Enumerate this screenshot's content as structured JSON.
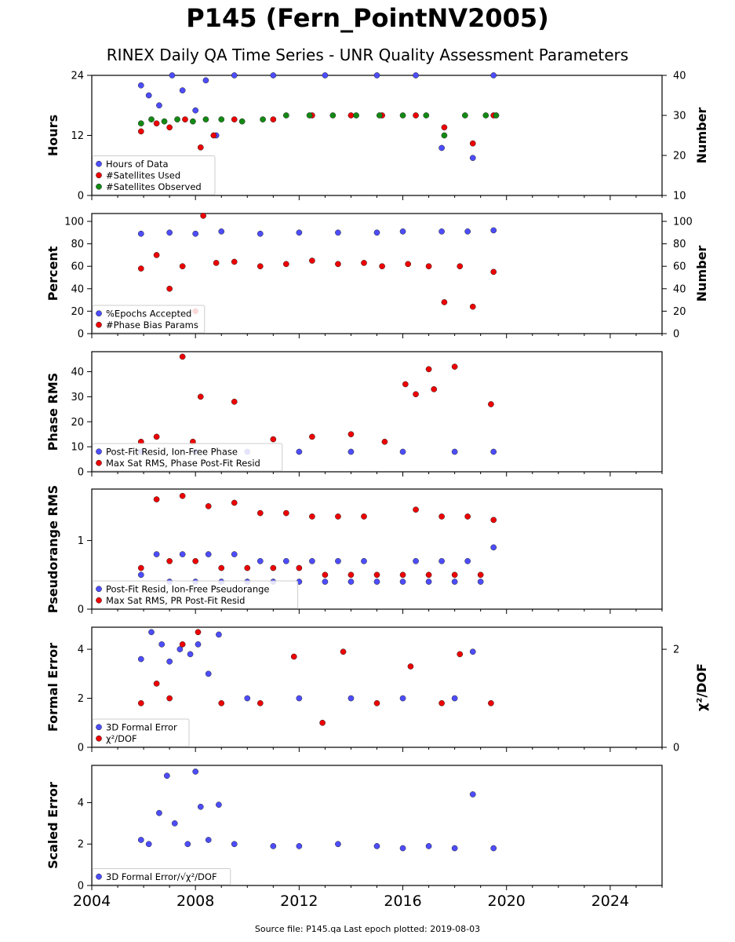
{
  "title": "P145 (Fern_PointNV2005)",
  "subtitle": "RINEX Daily QA Time Series - UNR Quality Assessment Parameters",
  "footer": "Source file: P145.qa Last epoch plotted: 2019-08-03",
  "colors": {
    "blue": "#4d4dff",
    "red": "#ee0000",
    "green": "#138a13"
  },
  "chart_data": [
    {
      "type": "scatter",
      "ylabel": "Hours",
      "y2label": "Number",
      "ylim": [
        0,
        24
      ],
      "yticks": [
        0,
        12,
        24
      ],
      "y2lim": [
        10,
        40
      ],
      "y2ticks": [
        10,
        20,
        30,
        40
      ],
      "xlim": [
        2004,
        2026
      ],
      "xticks": [
        2004,
        2008,
        2012,
        2016,
        2020,
        2024
      ],
      "legend": [
        "Hours of Data",
        "#Satellites Used",
        "#Satellites Observed"
      ],
      "legend_position": "lower-left",
      "series": [
        {
          "name": "Hours of Data",
          "axis": "left",
          "color": "blue",
          "x": [
            2005.9,
            2006.2,
            2006.6,
            2007.1,
            2007.5,
            2008.0,
            2008.4,
            2008.8,
            2009.5,
            2011.0,
            2013.0,
            2015.0,
            2016.5,
            2017.5,
            2018.7,
            2019.5
          ],
          "y": [
            22,
            20,
            18,
            24,
            21,
            17,
            23,
            12,
            24,
            24,
            24,
            24,
            24,
            9.5,
            7.5,
            24
          ]
        },
        {
          "name": "#Satellites Used",
          "axis": "right",
          "color": "red",
          "x": [
            2005.9,
            2006.5,
            2007.0,
            2007.6,
            2008.2,
            2008.7,
            2009.5,
            2011.0,
            2012.5,
            2014.0,
            2015.2,
            2016.5,
            2017.6,
            2018.7,
            2019.5
          ],
          "y": [
            26,
            28,
            27,
            29,
            22,
            25,
            29,
            29,
            30,
            30,
            30,
            30,
            27,
            23,
            30
          ]
        },
        {
          "name": "#Satellites Observed",
          "axis": "right",
          "color": "green",
          "x": [
            2005.9,
            2006.3,
            2006.8,
            2007.3,
            2007.9,
            2008.4,
            2009.0,
            2009.8,
            2010.6,
            2011.5,
            2012.4,
            2013.3,
            2014.2,
            2015.1,
            2016.0,
            2016.9,
            2017.6,
            2018.4,
            2019.2,
            2019.6
          ],
          "y": [
            28,
            29,
            28.5,
            29,
            28.5,
            29,
            29,
            28.5,
            29,
            30,
            30,
            30,
            30,
            30,
            30,
            30,
            25,
            30,
            30,
            30
          ]
        }
      ]
    },
    {
      "type": "scatter",
      "ylabel": "Percent",
      "y2label": "Number",
      "ylim": [
        0,
        107
      ],
      "yticks": [
        0,
        20,
        40,
        60,
        80,
        100
      ],
      "y2lim": [
        0,
        107
      ],
      "y2ticks": [
        0,
        20,
        40,
        60,
        80,
        100
      ],
      "xlim": [
        2004,
        2026
      ],
      "legend": [
        "%Epochs Accepted",
        "#Phase Bias Params"
      ],
      "legend_position": "lower-left",
      "series": [
        {
          "name": "%Epochs Accepted",
          "axis": "left",
          "color": "blue",
          "x": [
            2005.9,
            2007.0,
            2008.0,
            2009.0,
            2010.5,
            2012.0,
            2013.5,
            2015.0,
            2016.0,
            2017.5,
            2018.5,
            2019.5
          ],
          "y": [
            89,
            90,
            89,
            91,
            89,
            90,
            90,
            90,
            91,
            91,
            91,
            92
          ]
        },
        {
          "name": "#Phase Bias Params",
          "axis": "right",
          "color": "red",
          "x": [
            2005.9,
            2006.5,
            2007.0,
            2007.5,
            2008.0,
            2008.3,
            2008.8,
            2009.5,
            2010.5,
            2011.5,
            2012.5,
            2013.5,
            2014.5,
            2015.2,
            2016.2,
            2017.0,
            2017.6,
            2018.2,
            2018.7,
            2019.5
          ],
          "y": [
            58,
            70,
            40,
            60,
            20,
            105,
            63,
            64,
            60,
            62,
            65,
            62,
            63,
            60,
            62,
            60,
            28,
            60,
            24,
            55
          ]
        }
      ]
    },
    {
      "type": "scatter",
      "ylabel": "Phase RMS",
      "ylim": [
        0,
        48
      ],
      "yticks": [
        0,
        10,
        20,
        30,
        40
      ],
      "xlim": [
        2004,
        2026
      ],
      "legend": [
        "Post-Fit Resid, Ion-Free Phase",
        "Max Sat RMS, Phase Post-Fit Resid"
      ],
      "legend_position": "lower-left",
      "series": [
        {
          "name": "Post-Fit Resid, Ion-Free Phase",
          "color": "blue",
          "x": [
            2005.9,
            2008.0,
            2010.0,
            2012.0,
            2014.0,
            2016.0,
            2018.0,
            2019.5
          ],
          "y": [
            8,
            8,
            8,
            8,
            8,
            8,
            8,
            8
          ]
        },
        {
          "name": "Max Sat RMS, Phase Post-Fit Resid",
          "color": "red",
          "x": [
            2005.9,
            2006.5,
            2007.5,
            2007.9,
            2008.2,
            2009.5,
            2011.0,
            2012.5,
            2014.0,
            2015.3,
            2016.1,
            2016.5,
            2017.0,
            2017.2,
            2018.0,
            2019.4
          ],
          "y": [
            12,
            14,
            46,
            12,
            30,
            28,
            13,
            14,
            15,
            12,
            35,
            31,
            41,
            33,
            42,
            27
          ]
        }
      ]
    },
    {
      "type": "scatter",
      "ylabel": "Pseudorange RMS",
      "ylim": [
        0,
        1.75
      ],
      "yticks": [
        0,
        1
      ],
      "xlim": [
        2004,
        2026
      ],
      "legend": [
        "Post-Fit Resid, Ion-Free Pseudorange",
        "Max Sat RMS, PR Post-Fit Resid"
      ],
      "legend_position": "lower-left",
      "series": [
        {
          "name": "Post-Fit Resid, Ion-Free Pseudorange",
          "color": "blue",
          "x": [
            2005.9,
            2006.5,
            2007.0,
            2007.5,
            2008.0,
            2008.5,
            2009.0,
            2009.5,
            2010.0,
            2010.5,
            2011.0,
            2011.5,
            2012.0,
            2012.5,
            2013.0,
            2013.5,
            2014.0,
            2014.5,
            2015.0,
            2016.0,
            2016.5,
            2017.0,
            2017.5,
            2018.0,
            2018.5,
            2019.0,
            2019.5
          ],
          "y": [
            0.5,
            0.8,
            0.4,
            0.8,
            0.4,
            0.8,
            0.4,
            0.8,
            0.4,
            0.7,
            0.4,
            0.7,
            0.4,
            0.7,
            0.4,
            0.7,
            0.4,
            0.7,
            0.4,
            0.4,
            0.7,
            0.4,
            0.7,
            0.4,
            0.7,
            0.4,
            0.9
          ]
        },
        {
          "name": "Max Sat RMS, PR Post-Fit Resid",
          "color": "red",
          "x": [
            2005.9,
            2006.5,
            2007.0,
            2007.5,
            2008.0,
            2008.5,
            2009.0,
            2009.5,
            2010.0,
            2010.5,
            2011.0,
            2011.5,
            2012.0,
            2012.5,
            2013.0,
            2013.5,
            2014.0,
            2014.5,
            2015.0,
            2016.0,
            2016.5,
            2017.0,
            2017.5,
            2018.0,
            2018.5,
            2019.0,
            2019.5
          ],
          "y": [
            0.6,
            1.6,
            0.7,
            1.65,
            0.7,
            1.5,
            0.6,
            1.55,
            0.6,
            1.4,
            0.6,
            1.4,
            0.6,
            1.35,
            0.5,
            1.35,
            0.5,
            1.35,
            0.5,
            0.5,
            1.45,
            0.5,
            1.35,
            0.5,
            1.35,
            0.5,
            1.3
          ]
        }
      ]
    },
    {
      "type": "scatter",
      "ylabel": "Formal Error",
      "y2label": "χ²/DOF",
      "ylim": [
        0,
        4.9
      ],
      "yticks": [
        0,
        2,
        4
      ],
      "y2lim": [
        0,
        2.45
      ],
      "y2ticks": [
        0,
        2
      ],
      "xlim": [
        2004,
        2026
      ],
      "legend": [
        "3D Formal Error",
        "χ²/DOF"
      ],
      "legend_position": "lower-left",
      "series": [
        {
          "name": "3D Formal Error",
          "axis": "left",
          "color": "blue",
          "x": [
            2005.9,
            2006.3,
            2006.7,
            2007.0,
            2007.4,
            2007.8,
            2008.1,
            2008.5,
            2008.9,
            2010.0,
            2012.0,
            2014.0,
            2016.0,
            2018.0,
            2018.7
          ],
          "y": [
            3.6,
            4.7,
            4.2,
            3.5,
            4.0,
            3.8,
            4.2,
            3.0,
            4.6,
            2.0,
            2.0,
            2.0,
            2.0,
            2.0,
            3.9
          ]
        },
        {
          "name": "χ²/DOF",
          "axis": "right",
          "color": "red",
          "x": [
            2005.9,
            2006.5,
            2007.0,
            2007.5,
            2008.1,
            2009.0,
            2010.5,
            2011.8,
            2012.9,
            2013.7,
            2015.0,
            2016.3,
            2017.5,
            2018.2,
            2019.4
          ],
          "y": [
            0.9,
            1.3,
            1.0,
            2.1,
            2.35,
            0.9,
            0.9,
            1.85,
            0.5,
            1.95,
            0.9,
            1.65,
            0.9,
            1.9,
            0.9
          ]
        }
      ]
    },
    {
      "type": "scatter",
      "ylabel": "Scaled Error",
      "ylim": [
        0,
        5.8
      ],
      "yticks": [
        0,
        2,
        4
      ],
      "xlim": [
        2004,
        2026
      ],
      "xticks": [
        2004,
        2008,
        2012,
        2016,
        2020,
        2024
      ],
      "xticklabels": [
        "2004",
        "2008",
        "2012",
        "2016",
        "2020",
        "2024"
      ],
      "legend": [
        "3D Formal Error/√χ²/DOF"
      ],
      "legend_position": "lower-left",
      "series": [
        {
          "name": "3D Formal Error/√χ²/DOF",
          "color": "blue",
          "x": [
            2005.9,
            2006.2,
            2006.6,
            2006.9,
            2007.2,
            2007.7,
            2008.0,
            2008.2,
            2008.5,
            2008.9,
            2009.5,
            2011.0,
            2012.0,
            2013.5,
            2015.0,
            2016.0,
            2017.0,
            2018.0,
            2018.7,
            2019.5
          ],
          "y": [
            2.2,
            2.0,
            3.5,
            5.3,
            3.0,
            2.0,
            5.5,
            3.8,
            2.2,
            3.9,
            2.0,
            1.9,
            1.9,
            2.0,
            1.9,
            1.8,
            1.9,
            1.8,
            4.4,
            1.8
          ]
        }
      ]
    }
  ]
}
